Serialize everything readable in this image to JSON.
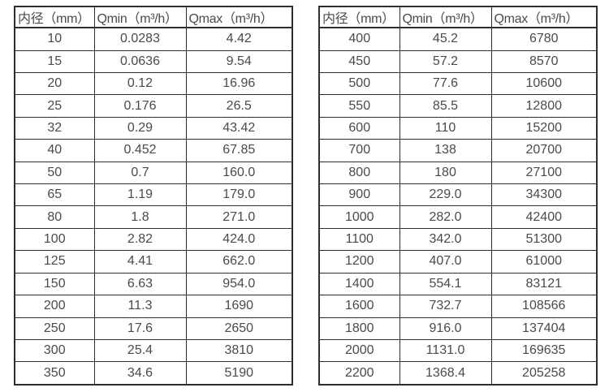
{
  "page": {
    "background_color": "#ffffff",
    "border_color": "#2e2e2e",
    "text_color": "#4a4a4a"
  },
  "chart_data": [
    {
      "type": "table",
      "title": "",
      "columns": [
        "内径（mm）",
        "Qmin（m³/h）",
        "Qmax（m³/h）"
      ],
      "rows": [
        [
          "10",
          "0.0283",
          "4.42"
        ],
        [
          "15",
          "0.0636",
          "9.54"
        ],
        [
          "20",
          "0.12",
          "16.96"
        ],
        [
          "25",
          "0.176",
          "26.5"
        ],
        [
          "32",
          "0.29",
          "43.42"
        ],
        [
          "40",
          "0.452",
          "67.85"
        ],
        [
          "50",
          "0.7",
          "160.0"
        ],
        [
          "65",
          "1.19",
          "179.0"
        ],
        [
          "80",
          "1.8",
          "271.0"
        ],
        [
          "100",
          "2.82",
          "424.0"
        ],
        [
          "125",
          "4.41",
          "662.0"
        ],
        [
          "150",
          "6.63",
          "954.0"
        ],
        [
          "200",
          "11.3",
          "1690"
        ],
        [
          "250",
          "17.6",
          "2650"
        ],
        [
          "300",
          "25.4",
          "3810"
        ],
        [
          "350",
          "34.6",
          "5190"
        ]
      ]
    },
    {
      "type": "table",
      "title": "",
      "columns": [
        "内径（mm）",
        "Qmin（m³/h）",
        "Qmax（m³/h）"
      ],
      "rows": [
        [
          "400",
          "45.2",
          "6780"
        ],
        [
          "450",
          "57.2",
          "8570"
        ],
        [
          "500",
          "77.6",
          "10600"
        ],
        [
          "550",
          "85.5",
          "12800"
        ],
        [
          "600",
          "110",
          "15200"
        ],
        [
          "700",
          "138",
          "20700"
        ],
        [
          "800",
          "180",
          "27100"
        ],
        [
          "900",
          "229.0",
          "34300"
        ],
        [
          "1000",
          "282.0",
          "42400"
        ],
        [
          "1100",
          "342.0",
          "51300"
        ],
        [
          "1200",
          "407.0",
          "61000"
        ],
        [
          "1400",
          "554.1",
          "83121"
        ],
        [
          "1600",
          "732.7",
          "108566"
        ],
        [
          "1800",
          "916.0",
          "137404"
        ],
        [
          "2000",
          "1131.0",
          "169635"
        ],
        [
          "2200",
          "1368.4",
          "205258"
        ]
      ]
    }
  ]
}
